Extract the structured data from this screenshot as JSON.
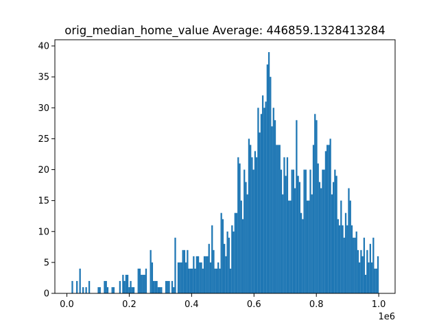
{
  "chart_data": {
    "type": "bar",
    "title": "orig_median_home_value  Average: 446859.1328413284",
    "xlabel": "",
    "ylabel": "",
    "x_offset_label": "1e6",
    "xlim": [
      -0.0385,
      1.0525
    ],
    "ylim": [
      0,
      41
    ],
    "x_ticks": [
      0.0,
      0.2,
      0.4,
      0.6,
      0.8,
      1.0
    ],
    "x_tick_labels": [
      "0.0",
      "0.2",
      "0.4",
      "0.6",
      "0.8",
      "1.0"
    ],
    "y_ticks": [
      0,
      5,
      10,
      15,
      20,
      25,
      30,
      35,
      40
    ],
    "y_tick_labels": [
      "0",
      "5",
      "10",
      "15",
      "20",
      "25",
      "30",
      "35",
      "40"
    ],
    "bar_color": "#1f77b4",
    "grid": false,
    "bins": {
      "start": 0.015,
      "end": 1.0,
      "count": 200
    },
    "values": [
      2,
      0,
      0,
      2,
      0,
      4,
      0,
      1,
      0,
      1,
      0,
      2,
      0,
      0,
      0,
      0,
      0,
      1,
      1,
      0,
      0,
      2,
      2,
      1,
      0,
      0,
      1,
      1,
      0,
      0,
      0,
      2,
      0,
      3,
      2,
      3,
      3,
      1,
      2,
      1,
      1,
      0,
      0,
      4,
      4,
      3,
      3,
      3,
      4,
      0,
      0,
      7,
      5,
      2,
      2,
      2,
      1,
      1,
      1,
      0,
      0,
      2,
      2,
      2,
      0,
      2,
      1,
      9,
      0,
      5,
      5,
      5,
      7,
      7,
      5,
      7,
      4,
      4,
      4,
      6,
      4,
      6,
      6,
      5,
      5,
      4,
      6,
      6,
      6,
      8,
      5,
      11,
      7,
      4,
      4,
      5,
      4,
      13,
      12,
      8,
      6,
      10,
      9,
      4,
      11,
      10,
      13,
      13,
      22,
      21,
      15,
      12,
      20,
      18,
      16,
      25,
      24,
      22,
      20,
      23,
      22,
      30,
      26,
      29,
      32,
      30,
      31,
      37,
      39,
      35,
      27,
      30,
      28,
      24,
      24,
      24,
      20,
      16,
      22,
      19,
      22,
      15,
      15,
      20,
      20,
      17,
      28,
      19,
      18,
      13,
      12,
      20,
      20,
      15,
      15,
      20,
      16,
      24,
      29,
      28,
      21,
      18,
      17,
      20,
      20,
      23,
      24,
      24,
      25,
      16,
      18,
      20,
      19,
      12,
      11,
      15,
      11,
      9,
      13,
      11,
      17,
      15,
      11,
      9,
      9,
      10,
      7,
      5,
      7,
      6,
      9,
      3,
      7,
      5,
      8,
      5,
      9,
      4,
      4,
      6
    ]
  }
}
